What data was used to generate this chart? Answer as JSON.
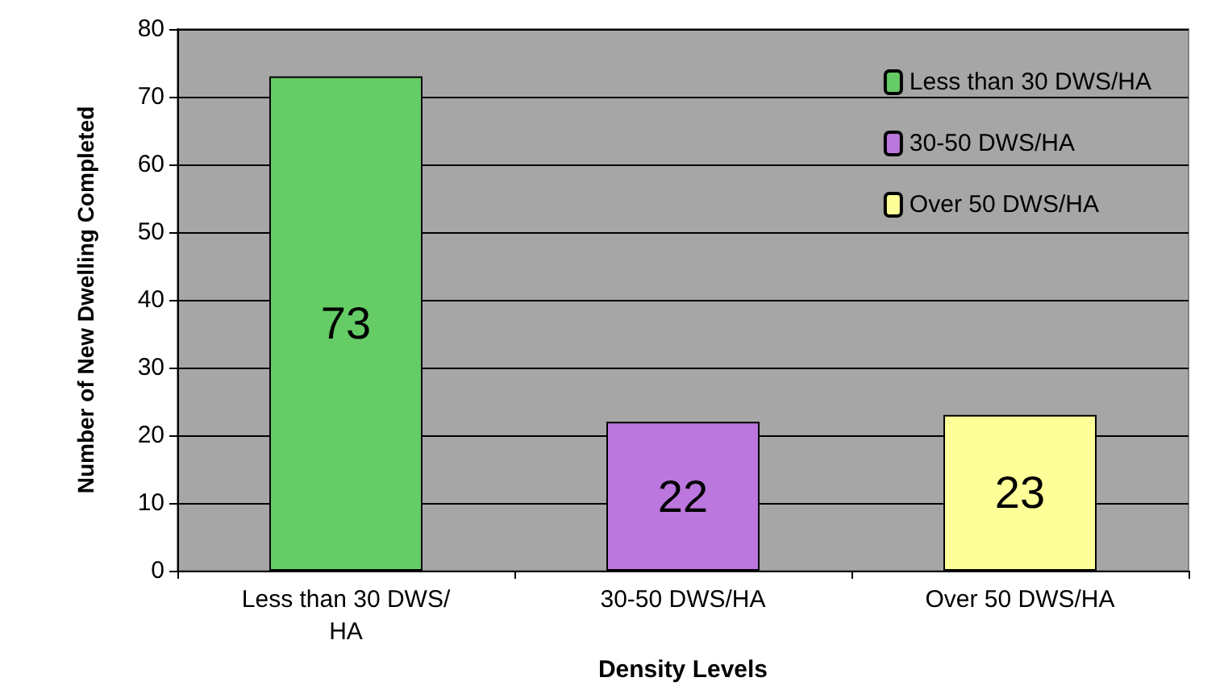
{
  "chart_data": {
    "type": "bar",
    "xlabel": "Density Levels",
    "ylabel": "Number of New Dwelling Completed",
    "categories": [
      "Less than 30 DWS/HA",
      "30-50 DWS/HA",
      "Over 50 DWS/HA"
    ],
    "series": [
      {
        "name": "Less than 30 DWS/HA",
        "color": "#66cc66",
        "values": [
          73,
          null,
          null
        ]
      },
      {
        "name": "30-50 DWS/HA",
        "color": "#bb77dd",
        "values": [
          null,
          22,
          null
        ]
      },
      {
        "name": "Over 50 DWS/HA",
        "color": "#ffff99",
        "values": [
          null,
          null,
          23
        ]
      }
    ],
    "ylim": [
      0,
      80
    ],
    "yticks": [
      0,
      10,
      20,
      30,
      40,
      50,
      60,
      70,
      80
    ],
    "grid": "y",
    "legend": "top right",
    "data_labels": true
  }
}
